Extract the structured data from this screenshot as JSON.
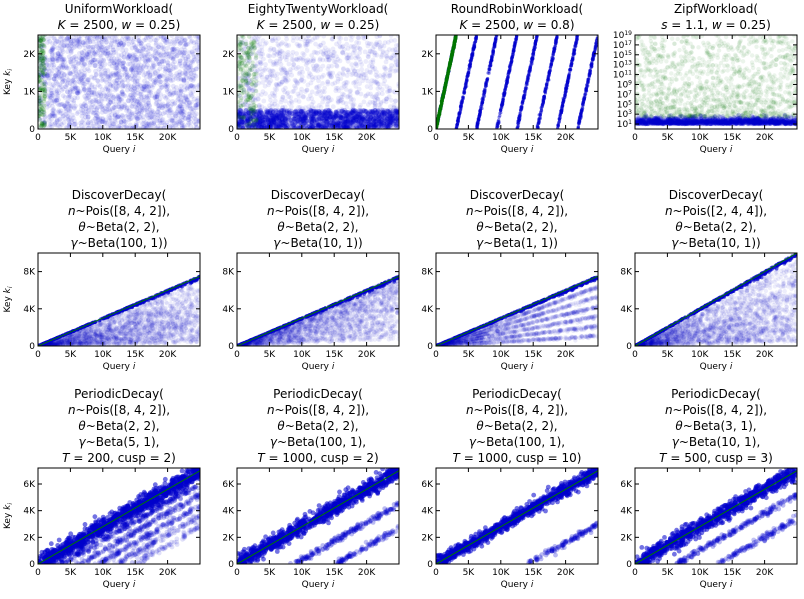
{
  "colors": {
    "queried": "#0000cc",
    "new_key": "#007700",
    "axes": "#000000",
    "background": "#ffffff"
  },
  "chart_data": [
    {
      "type": "scatter",
      "title": [
        "UniformWorkload(",
        "K = 2500, w = 0.25)"
      ],
      "xlabel": "Query i",
      "ylabel": "Key k_i",
      "xlim": [
        0,
        25000
      ],
      "ylim": [
        0,
        2500
      ],
      "xticks": [
        0,
        5000,
        10000,
        15000,
        20000
      ],
      "xtick_labels": [
        "0",
        "5K",
        "10K",
        "15K",
        "20K"
      ],
      "yticks": [
        0,
        1000,
        2000
      ],
      "ytick_labels": [
        "0",
        "1K",
        "2K"
      ],
      "pattern": "uniform",
      "params": {
        "K": 2500,
        "w": 0.25
      }
    },
    {
      "type": "scatter",
      "title": [
        "EightyTwentyWorkload(",
        "K = 2500, w = 0.25)"
      ],
      "xlabel": "Query i",
      "ylabel": "",
      "xlim": [
        0,
        25000
      ],
      "ylim": [
        0,
        2500
      ],
      "xticks": [
        0,
        5000,
        10000,
        15000,
        20000
      ],
      "xtick_labels": [
        "0",
        "5K",
        "10K",
        "15K",
        "20K"
      ],
      "yticks": [
        0,
        1000,
        2000
      ],
      "ytick_labels": [
        "0",
        "1K",
        "2K"
      ],
      "pattern": "eighty_twenty",
      "params": {
        "K": 2500,
        "w": 0.25,
        "hot_fraction": 0.2
      }
    },
    {
      "type": "scatter",
      "title": [
        "RoundRobinWorkload(",
        "K = 2500, w = 0.8)"
      ],
      "xlabel": "Query i",
      "ylabel": "",
      "xlim": [
        0,
        25000
      ],
      "ylim": [
        0,
        2500
      ],
      "xticks": [
        0,
        5000,
        10000,
        15000,
        20000
      ],
      "xtick_labels": [
        "0",
        "5K",
        "10K",
        "15K",
        "20K"
      ],
      "yticks": [
        0,
        1000,
        2000
      ],
      "ytick_labels": [
        "0",
        "1K",
        "2K"
      ],
      "pattern": "round_robin",
      "params": {
        "K": 2500,
        "w": 0.8
      }
    },
    {
      "type": "scatter",
      "title": [
        "ZipfWorkload(",
        "s = 1.1, w = 0.25)"
      ],
      "xlabel": "Query i",
      "ylabel": "",
      "xlim": [
        0,
        25000
      ],
      "ylim": [
        0,
        19
      ],
      "yscale": "log",
      "xticks": [
        0,
        5000,
        10000,
        15000,
        20000
      ],
      "xtick_labels": [
        "0",
        "5K",
        "10K",
        "15K",
        "20K"
      ],
      "yticks": [
        1,
        3,
        5,
        7,
        9,
        11,
        13,
        15,
        17,
        19
      ],
      "ytick_labels": [
        "10^1",
        "10^3",
        "10^5",
        "10^7",
        "10^9",
        "10^11",
        "10^13",
        "10^15",
        "10^17",
        "10^19"
      ],
      "pattern": "zipf",
      "params": {
        "s": 1.1,
        "w": 0.25
      }
    },
    {
      "type": "scatter",
      "title": [
        "DiscoverDecay(",
        "n~Pois([8, 4, 2]),",
        "θ~Beta(2, 2),",
        "γ~Beta(100, 1))"
      ],
      "xlabel": "Query i",
      "ylabel": "Key k_i",
      "xlim": [
        0,
        25000
      ],
      "ylim": [
        0,
        10000
      ],
      "xticks": [
        0,
        5000,
        10000,
        15000,
        20000
      ],
      "xtick_labels": [
        "0",
        "5K",
        "10K",
        "15K",
        "20K"
      ],
      "yticks": [
        0,
        4000,
        8000
      ],
      "ytick_labels": [
        "0",
        "4K",
        "8K"
      ],
      "pattern": "discover",
      "params": {
        "slope": 0.3,
        "spread": "wide",
        "bands": false
      }
    },
    {
      "type": "scatter",
      "title": [
        "DiscoverDecay(",
        "n~Pois([8, 4, 2]),",
        "θ~Beta(2, 2),",
        "γ~Beta(10, 1))"
      ],
      "xlabel": "Query i",
      "ylabel": "",
      "xlim": [
        0,
        25000
      ],
      "ylim": [
        0,
        10000
      ],
      "xticks": [
        0,
        5000,
        10000,
        15000,
        20000
      ],
      "xtick_labels": [
        "0",
        "5K",
        "10K",
        "15K",
        "20K"
      ],
      "yticks": [
        0,
        4000,
        8000
      ],
      "ytick_labels": [
        "0",
        "4K",
        "8K"
      ],
      "pattern": "discover",
      "params": {
        "slope": 0.3,
        "spread": "medium",
        "bands": false
      }
    },
    {
      "type": "scatter",
      "title": [
        "DiscoverDecay(",
        "n~Pois([8, 4, 2]),",
        "θ~Beta(2, 2),",
        "γ~Beta(1, 1))"
      ],
      "xlabel": "Query i",
      "ylabel": "",
      "xlim": [
        0,
        25000
      ],
      "ylim": [
        0,
        10000
      ],
      "xticks": [
        0,
        5000,
        10000,
        15000,
        20000
      ],
      "xtick_labels": [
        "0",
        "5K",
        "10K",
        "15K",
        "20K"
      ],
      "yticks": [
        0,
        4000,
        8000
      ],
      "ytick_labels": [
        "0",
        "4K",
        "8K"
      ],
      "pattern": "discover",
      "params": {
        "slope": 0.3,
        "spread": "medium",
        "bands": true
      }
    },
    {
      "type": "scatter",
      "title": [
        "DiscoverDecay(",
        "n~Pois([2, 4, 4]),",
        "θ~Beta(2, 2),",
        "γ~Beta(10, 1))"
      ],
      "xlabel": "Query i",
      "ylabel": "",
      "xlim": [
        0,
        25000
      ],
      "ylim": [
        0,
        10000
      ],
      "xticks": [
        0,
        5000,
        10000,
        15000,
        20000
      ],
      "xtick_labels": [
        "0",
        "5K",
        "10K",
        "15K",
        "20K"
      ],
      "yticks": [
        0,
        4000,
        8000
      ],
      "ytick_labels": [
        "0",
        "4K",
        "8K"
      ],
      "pattern": "discover",
      "params": {
        "slope": 0.4,
        "spread": "wide",
        "bands": false
      }
    },
    {
      "type": "scatter",
      "title": [
        "PeriodicDecay(",
        "n~Pois([8, 4, 2]),",
        "θ~Beta(2, 2),",
        "γ~Beta(5, 1),",
        "T = 200, cusp = 2)"
      ],
      "xlabel": "Query i",
      "ylabel": "Key k_i",
      "xlim": [
        0,
        25000
      ],
      "ylim": [
        0,
        7200
      ],
      "xticks": [
        0,
        5000,
        10000,
        15000,
        20000
      ],
      "xtick_labels": [
        "0",
        "5K",
        "10K",
        "15K",
        "20K"
      ],
      "yticks": [
        0,
        2000,
        4000,
        6000
      ],
      "ytick_labels": [
        "0",
        "2K",
        "4K",
        "6K"
      ],
      "pattern": "periodic",
      "params": {
        "offsets": [
          0,
          300,
          1000,
          1800,
          2600,
          3400,
          4200
        ],
        "main_width": 350
      }
    },
    {
      "type": "scatter",
      "title": [
        "PeriodicDecay(",
        "n~Pois([8, 4, 2]),",
        "θ~Beta(2, 2),",
        "γ~Beta(100, 1),",
        "T = 1000, cusp = 2)"
      ],
      "xlabel": "Query i",
      "ylabel": "",
      "xlim": [
        0,
        25000
      ],
      "ylim": [
        0,
        7200
      ],
      "xticks": [
        0,
        5000,
        10000,
        15000,
        20000
      ],
      "xtick_labels": [
        "0",
        "5K",
        "10K",
        "15K",
        "20K"
      ],
      "yticks": [
        0,
        2000,
        4000,
        6000
      ],
      "ytick_labels": [
        "0",
        "2K",
        "4K",
        "6K"
      ],
      "pattern": "periodic",
      "params": {
        "offsets": [
          0,
          2500,
          4300
        ],
        "main_width": 300
      }
    },
    {
      "type": "scatter",
      "title": [
        "PeriodicDecay(",
        "n~Pois([8, 4, 2]),",
        "θ~Beta(2, 2),",
        "γ~Beta(100, 1),",
        "T = 1000, cusp = 10)"
      ],
      "xlabel": "Query i",
      "ylabel": "",
      "xlim": [
        0,
        25000
      ],
      "ylim": [
        0,
        7200
      ],
      "xticks": [
        0,
        5000,
        10000,
        15000,
        20000
      ],
      "xtick_labels": [
        "0",
        "5K",
        "10K",
        "15K",
        "20K"
      ],
      "yticks": [
        0,
        2000,
        4000,
        6000
      ],
      "ytick_labels": [
        "0",
        "2K",
        "4K",
        "6K"
      ],
      "pattern": "periodic",
      "params": {
        "offsets": [
          0,
          4000
        ],
        "main_width": 250
      }
    },
    {
      "type": "scatter",
      "title": [
        "PeriodicDecay(",
        "n~Pois([8, 4, 2]),",
        "θ~Beta(3, 1),",
        "γ~Beta(10, 1),",
        "T = 500, cusp = 3)"
      ],
      "xlabel": "Query i",
      "ylabel": "",
      "xlim": [
        0,
        25000
      ],
      "ylim": [
        0,
        7200
      ],
      "xticks": [
        0,
        5000,
        10000,
        15000,
        20000
      ],
      "xtick_labels": [
        "0",
        "5K",
        "10K",
        "15K",
        "20K"
      ],
      "yticks": [
        0,
        2000,
        4000,
        6000
      ],
      "ytick_labels": [
        "0",
        "2K",
        "4K",
        "6K"
      ],
      "pattern": "periodic",
      "params": {
        "offsets": [
          0,
          1800,
          3600
        ],
        "main_width": 300
      }
    }
  ]
}
